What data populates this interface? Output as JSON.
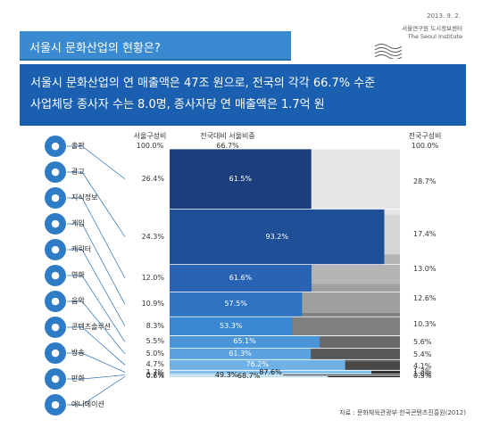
{
  "header": {
    "date": "2013. 9. 2.",
    "org_korean": "서울연구원 도시정보센터",
    "org_english": "The Seoul Institute",
    "title": "서울시 문화산업의 현황은?",
    "summary_line1": "서울시 문화산업의 연 매출액은 47조 원으로, 전국의 각각 66.7% 수준",
    "summary_line2": "사업체당 종사자 수는 8.0명, 종사자당 연 매출액은 1.7억 원"
  },
  "column_headers": {
    "seoul_share_title": "서울구성비",
    "seoul_share_total": "100.0%",
    "nation_vs_seoul_title": "전국대비 서울비중",
    "nation_vs_seoul_total": "66.7%",
    "nation_share_title": "전국구성비",
    "nation_share_total": "100.0%"
  },
  "source": "자료 : 문화체육관광부·한국콘텐츠진흥원(2012)",
  "colors": {
    "icon_blue": "#2f7cc6",
    "bar_blues": [
      "#1a3f7c",
      "#1f4f97",
      "#2a63b3",
      "#2f74c3",
      "#3a86d0",
      "#4a95d8",
      "#5aa2df",
      "#6eb1e6",
      "#82bfec",
      "#98cdf2",
      "#aed9f5"
    ],
    "gray_scale": [
      "#e6e6e6",
      "#d6d6d6",
      "#b5b5b5",
      "#9f9f9f",
      "#7f7f7f",
      "#6a6a6a",
      "#575757",
      "#474747",
      "#303030",
      "#1c1c1c",
      "#0a0a0a"
    ]
  },
  "chart_data": {
    "type": "bar",
    "title": "",
    "categories": [
      "출판",
      "광고",
      "지식정보",
      "게임",
      "캐릭터",
      "영화",
      "음악",
      "콘텐츠솔루션",
      "방송",
      "만화",
      "애니메이션"
    ],
    "icons": [
      "book-icon",
      "ad-icon",
      "question-icon",
      "gamepad-icon",
      "character-icon",
      "film-icon",
      "headphones-icon",
      "monitor-icon",
      "tv-icon",
      "comic-icon",
      "animation-icon"
    ],
    "series": [
      {
        "name": "서울구성비",
        "values": [
          26.4,
          24.3,
          12.0,
          10.9,
          8.3,
          5.5,
          5.0,
          4.7,
          1.7,
          0.7,
          0.6
        ],
        "labels": [
          "26.4%",
          "24.3%",
          "12.0%",
          "10.9%",
          "8.3%",
          "5.5%",
          "5.0%",
          "4.7%",
          "1.7%",
          "0.7%",
          "0.6%"
        ]
      },
      {
        "name": "전국대비 서울비중",
        "values": [
          61.5,
          93.2,
          61.6,
          57.5,
          53.3,
          65.1,
          61.3,
          76.2,
          87.6,
          49.3,
          68.7
        ],
        "labels": [
          "61.5%",
          "93.2%",
          "61.6%",
          "57.5%",
          "53.3%",
          "65.1%",
          "61.3%",
          "76.2%",
          "87.6%",
          "49.3%",
          "68.7%"
        ]
      },
      {
        "name": "전국구성비",
        "values": [
          28.7,
          17.4,
          13.0,
          12.6,
          10.3,
          5.6,
          5.4,
          4.1,
          1.3,
          1.0,
          0.5
        ],
        "labels": [
          "28.7%",
          "17.4%",
          "13.0%",
          "12.6%",
          "10.3%",
          "5.6%",
          "5.4%",
          "4.1%",
          "1.3%",
          "1.0%",
          "0.5%"
        ]
      }
    ]
  }
}
